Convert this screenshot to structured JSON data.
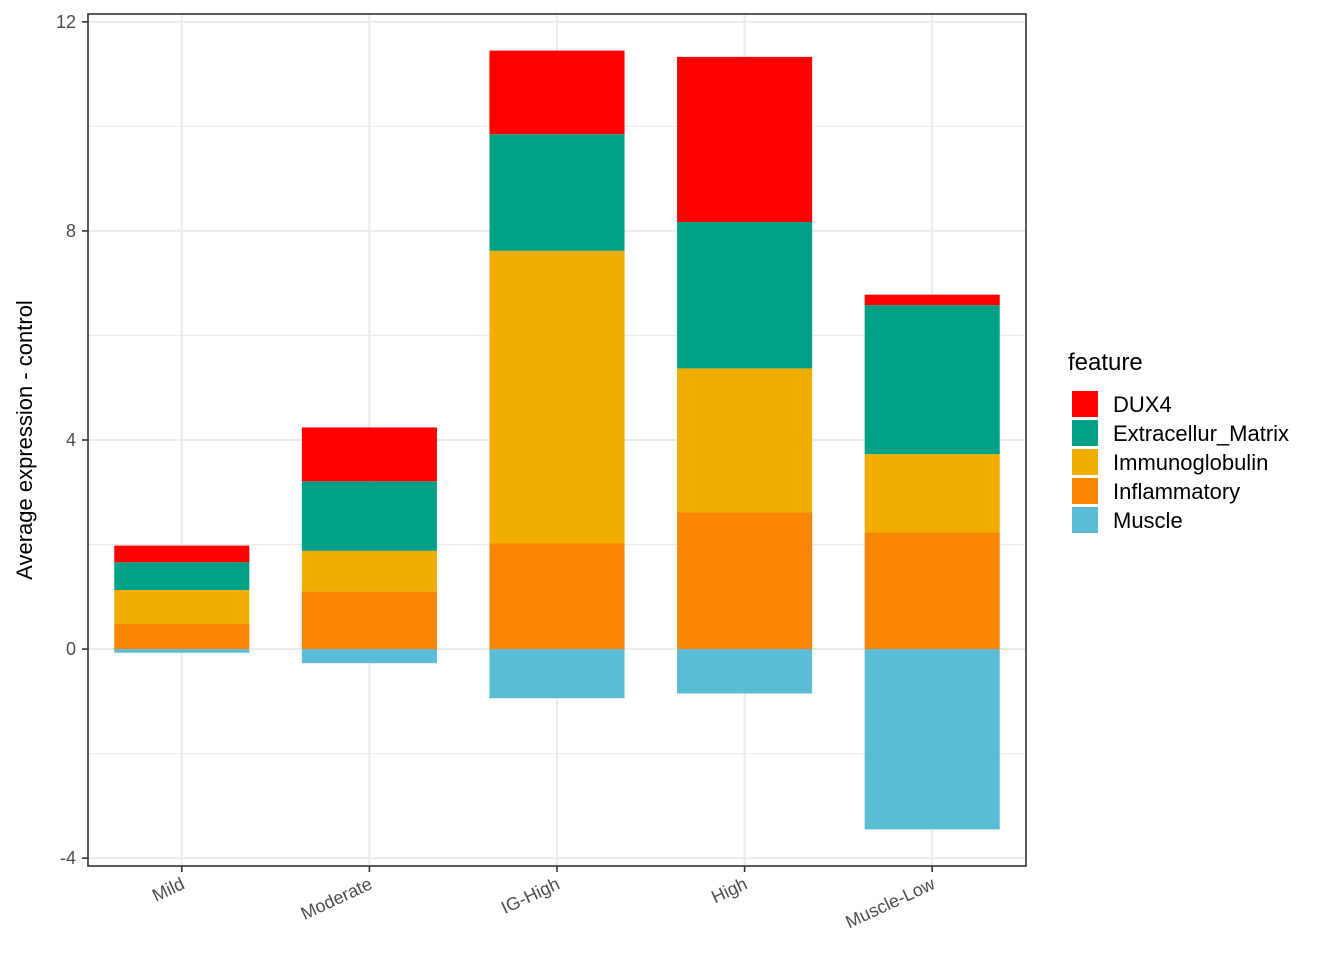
{
  "chart_data": {
    "type": "bar",
    "stacked": true,
    "categories": [
      "Mild",
      "Moderate",
      "IG-High",
      "High",
      "Muscle-Low"
    ],
    "series": [
      {
        "name": "Inflammatory",
        "color": "#F88600",
        "values": [
          0.48,
          1.1,
          2.02,
          2.62,
          2.23
        ]
      },
      {
        "name": "Immunoglobulin",
        "color": "#F1AE00",
        "values": [
          0.65,
          0.78,
          5.6,
          2.75,
          1.5
        ]
      },
      {
        "name": "Extracellur_Matrix",
        "color": "#00A087",
        "values": [
          0.53,
          1.33,
          2.23,
          2.8,
          2.85
        ]
      },
      {
        "name": "DUX4",
        "color": "#FF0000",
        "values": [
          0.32,
          1.03,
          1.6,
          3.16,
          0.2
        ]
      },
      {
        "name": "Muscle",
        "color": "#5BBCD6",
        "values": [
          -0.07,
          -0.27,
          -0.94,
          -0.85,
          -3.45
        ]
      }
    ],
    "xlabel": "",
    "ylabel": "Average expression - control",
    "ylim": [
      -4.15,
      12.15
    ],
    "yticks": [
      -4,
      0,
      4,
      8,
      12
    ],
    "yticks_minor": [
      -2,
      2,
      6,
      10
    ],
    "grid": true,
    "legend": {
      "title": "feature",
      "position": "right",
      "items": [
        "DUX4",
        "Extracellur_Matrix",
        "Immunoglobulin",
        "Inflammatory",
        "Muscle"
      ]
    }
  }
}
